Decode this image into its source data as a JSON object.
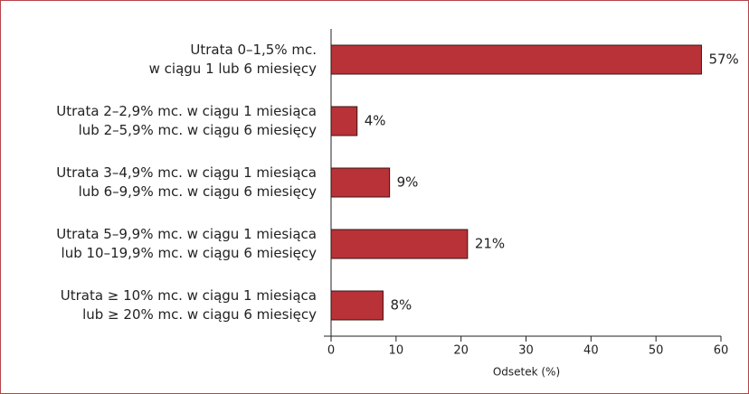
{
  "chart_data": {
    "type": "barh",
    "categories": [
      [
        "Utrata 0–1,5% mc.",
        "w ciągu 1 lub 6 miesięcy"
      ],
      [
        "Utrata 2–2,9% mc. w ciągu 1 miesiąca",
        "lub 2–5,9% mc. w ciągu 6 miesięcy"
      ],
      [
        "Utrata 3–4,9% mc. w ciągu 1 miesiąca",
        "lub 6–9,9% mc. w ciągu 6 miesięcy"
      ],
      [
        "Utrata 5–9,9% mc. w ciągu 1 miesiąca",
        "lub 10–19,9% mc. w ciągu 6 miesięcy"
      ],
      [
        "Utrata ≥ 10% mc. w ciągu 1 miesiąca",
        "lub ≥ 20% mc. w ciągu 6 miesięcy"
      ]
    ],
    "values": [
      57,
      4,
      9,
      21,
      8
    ],
    "value_labels": [
      "57%",
      "4%",
      "9%",
      "21%",
      "8%"
    ],
    "color": "#b83237",
    "xlabel": "Odsetek (%)",
    "xlim": [
      0,
      60
    ],
    "xticks": [
      0,
      10,
      20,
      30,
      40,
      50,
      60
    ]
  }
}
